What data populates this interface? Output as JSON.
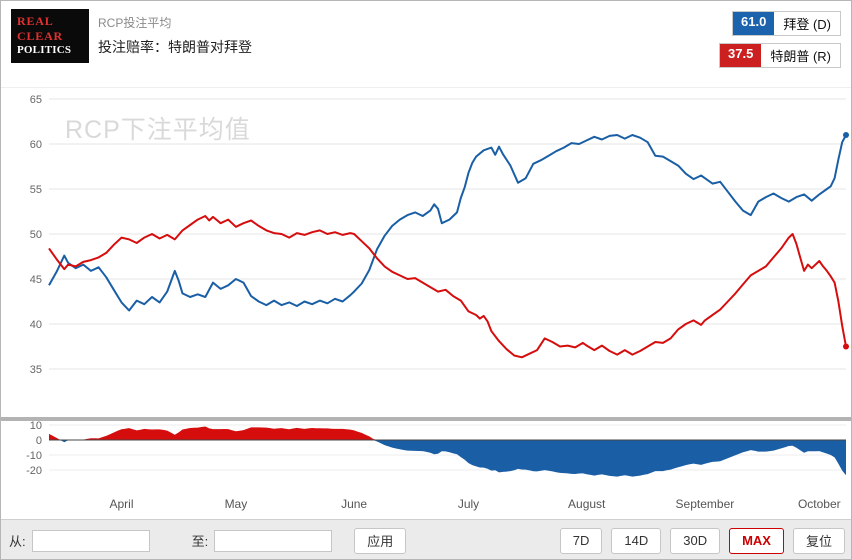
{
  "header": {
    "logo_lines": [
      "REAL",
      "CLEAR",
      "POLITICS"
    ],
    "kicker": "RCP投注平均",
    "title": "投注赔率：特朗普对拜登",
    "legend": [
      {
        "value": "61.0",
        "label": "拜登 (D)",
        "color": "#1c63ad"
      },
      {
        "value": "37.5",
        "label": "特朗普 (R)",
        "color": "#cc1f1f"
      }
    ]
  },
  "chart_data": {
    "type": "line",
    "watermark": "RCP下注平均值",
    "x_axis": {
      "month_ticks": [
        {
          "label": "April",
          "t": 19
        },
        {
          "label": "May",
          "t": 49
        },
        {
          "label": "June",
          "t": 80
        },
        {
          "label": "July",
          "t": 110
        },
        {
          "label": "August",
          "t": 141
        },
        {
          "label": "September",
          "t": 172
        },
        {
          "label": "October",
          "t": 202
        }
      ],
      "t_max": 209
    },
    "y_axis_main": {
      "min": 35,
      "max": 65,
      "ticks": [
        65,
        60,
        55,
        50,
        45,
        40,
        35
      ]
    },
    "y_axis_spread": {
      "ticks": [
        10,
        0,
        -10,
        -20
      ]
    },
    "series": [
      {
        "name": "拜登 (D)",
        "color": "#1a5fa5",
        "final_value": 61.0,
        "points": [
          [
            0,
            44.3
          ],
          [
            2,
            45.8
          ],
          [
            4,
            47.6
          ],
          [
            5,
            46.8
          ],
          [
            7,
            46.2
          ],
          [
            9,
            46.6
          ],
          [
            11,
            45.9
          ],
          [
            13,
            46.3
          ],
          [
            15,
            45.2
          ],
          [
            17,
            43.8
          ],
          [
            19,
            42.4
          ],
          [
            21,
            41.5
          ],
          [
            23,
            42.6
          ],
          [
            25,
            42.2
          ],
          [
            27,
            43.0
          ],
          [
            29,
            42.4
          ],
          [
            31,
            43.6
          ],
          [
            33,
            45.9
          ],
          [
            34,
            44.8
          ],
          [
            35,
            43.4
          ],
          [
            37,
            43.0
          ],
          [
            39,
            43.3
          ],
          [
            41,
            43.0
          ],
          [
            43,
            44.6
          ],
          [
            45,
            43.9
          ],
          [
            47,
            44.3
          ],
          [
            49,
            45.0
          ],
          [
            51,
            44.6
          ],
          [
            53,
            43.1
          ],
          [
            55,
            42.5
          ],
          [
            57,
            42.1
          ],
          [
            59,
            42.6
          ],
          [
            61,
            42.1
          ],
          [
            63,
            42.4
          ],
          [
            65,
            42.0
          ],
          [
            67,
            42.5
          ],
          [
            69,
            42.2
          ],
          [
            71,
            42.6
          ],
          [
            73,
            42.3
          ],
          [
            75,
            42.8
          ],
          [
            77,
            42.5
          ],
          [
            79,
            43.2
          ],
          [
            80,
            43.6
          ],
          [
            82,
            44.5
          ],
          [
            84,
            46.0
          ],
          [
            86,
            48.3
          ],
          [
            88,
            49.8
          ],
          [
            90,
            50.9
          ],
          [
            92,
            51.6
          ],
          [
            94,
            52.1
          ],
          [
            96,
            52.4
          ],
          [
            98,
            52.0
          ],
          [
            100,
            52.6
          ],
          [
            101,
            53.3
          ],
          [
            102,
            52.8
          ],
          [
            103,
            51.2
          ],
          [
            105,
            51.6
          ],
          [
            107,
            52.4
          ],
          [
            108,
            54.0
          ],
          [
            109,
            55.2
          ],
          [
            110,
            56.8
          ],
          [
            111,
            57.9
          ],
          [
            112,
            58.6
          ],
          [
            114,
            59.3
          ],
          [
            116,
            59.6
          ],
          [
            117,
            58.8
          ],
          [
            118,
            59.7
          ],
          [
            119,
            58.9
          ],
          [
            121,
            57.6
          ],
          [
            123,
            55.7
          ],
          [
            125,
            56.2
          ],
          [
            127,
            57.8
          ],
          [
            129,
            58.2
          ],
          [
            131,
            58.7
          ],
          [
            133,
            59.2
          ],
          [
            135,
            59.6
          ],
          [
            137,
            60.1
          ],
          [
            139,
            60.0
          ],
          [
            141,
            60.4
          ],
          [
            143,
            60.8
          ],
          [
            145,
            60.5
          ],
          [
            147,
            60.9
          ],
          [
            149,
            61.0
          ],
          [
            151,
            60.6
          ],
          [
            153,
            61.0
          ],
          [
            155,
            60.7
          ],
          [
            157,
            60.2
          ],
          [
            159,
            58.7
          ],
          [
            161,
            58.6
          ],
          [
            163,
            58.1
          ],
          [
            165,
            57.6
          ],
          [
            167,
            56.7
          ],
          [
            169,
            56.1
          ],
          [
            171,
            56.5
          ],
          [
            172,
            56.2
          ],
          [
            174,
            55.6
          ],
          [
            176,
            55.8
          ],
          [
            178,
            54.7
          ],
          [
            180,
            53.6
          ],
          [
            182,
            52.6
          ],
          [
            184,
            52.1
          ],
          [
            186,
            53.6
          ],
          [
            188,
            54.1
          ],
          [
            190,
            54.5
          ],
          [
            192,
            54.0
          ],
          [
            194,
            53.6
          ],
          [
            196,
            54.1
          ],
          [
            198,
            54.4
          ],
          [
            200,
            53.7
          ],
          [
            202,
            54.4
          ],
          [
            204,
            55.0
          ],
          [
            205,
            55.3
          ],
          [
            206,
            56.2
          ],
          [
            207,
            58.3
          ],
          [
            208,
            60.2
          ],
          [
            209,
            61.0
          ]
        ]
      },
      {
        "name": "特朗普 (R)",
        "color": "#d60d0d",
        "final_value": 37.5,
        "points": [
          [
            0,
            48.4
          ],
          [
            2,
            47.2
          ],
          [
            4,
            46.1
          ],
          [
            5,
            46.6
          ],
          [
            7,
            46.4
          ],
          [
            9,
            46.9
          ],
          [
            11,
            47.1
          ],
          [
            13,
            47.4
          ],
          [
            15,
            47.9
          ],
          [
            17,
            48.8
          ],
          [
            19,
            49.6
          ],
          [
            21,
            49.4
          ],
          [
            23,
            49.0
          ],
          [
            25,
            49.6
          ],
          [
            27,
            50.0
          ],
          [
            29,
            49.5
          ],
          [
            31,
            49.9
          ],
          [
            33,
            49.4
          ],
          [
            35,
            50.4
          ],
          [
            37,
            51.0
          ],
          [
            39,
            51.6
          ],
          [
            41,
            52.0
          ],
          [
            42,
            51.5
          ],
          [
            43,
            51.9
          ],
          [
            45,
            51.2
          ],
          [
            47,
            51.6
          ],
          [
            49,
            50.8
          ],
          [
            51,
            51.2
          ],
          [
            53,
            51.5
          ],
          [
            55,
            50.9
          ],
          [
            57,
            50.4
          ],
          [
            59,
            50.1
          ],
          [
            61,
            50.0
          ],
          [
            63,
            49.6
          ],
          [
            65,
            50.1
          ],
          [
            67,
            49.9
          ],
          [
            69,
            50.2
          ],
          [
            71,
            50.4
          ],
          [
            73,
            50.0
          ],
          [
            75,
            50.2
          ],
          [
            77,
            49.9
          ],
          [
            79,
            50.1
          ],
          [
            80,
            50.0
          ],
          [
            82,
            49.2
          ],
          [
            84,
            48.4
          ],
          [
            86,
            47.3
          ],
          [
            88,
            46.4
          ],
          [
            90,
            45.8
          ],
          [
            92,
            45.4
          ],
          [
            94,
            45.0
          ],
          [
            96,
            45.1
          ],
          [
            98,
            44.6
          ],
          [
            100,
            44.1
          ],
          [
            102,
            43.6
          ],
          [
            104,
            43.8
          ],
          [
            106,
            43.1
          ],
          [
            108,
            42.6
          ],
          [
            110,
            41.4
          ],
          [
            112,
            41.0
          ],
          [
            113,
            40.6
          ],
          [
            114,
            40.9
          ],
          [
            115,
            40.3
          ],
          [
            116,
            39.2
          ],
          [
            118,
            38.1
          ],
          [
            120,
            37.2
          ],
          [
            122,
            36.5
          ],
          [
            124,
            36.3
          ],
          [
            126,
            36.7
          ],
          [
            128,
            37.1
          ],
          [
            130,
            38.4
          ],
          [
            132,
            38.0
          ],
          [
            134,
            37.5
          ],
          [
            136,
            37.6
          ],
          [
            138,
            37.4
          ],
          [
            140,
            37.9
          ],
          [
            141,
            37.6
          ],
          [
            143,
            37.1
          ],
          [
            145,
            37.6
          ],
          [
            147,
            37.0
          ],
          [
            149,
            36.6
          ],
          [
            151,
            37.1
          ],
          [
            153,
            36.6
          ],
          [
            155,
            37.0
          ],
          [
            157,
            37.5
          ],
          [
            159,
            38.0
          ],
          [
            161,
            37.9
          ],
          [
            163,
            38.4
          ],
          [
            165,
            39.4
          ],
          [
            167,
            40.0
          ],
          [
            169,
            40.4
          ],
          [
            171,
            39.9
          ],
          [
            172,
            40.4
          ],
          [
            174,
            41.0
          ],
          [
            176,
            41.6
          ],
          [
            178,
            42.5
          ],
          [
            180,
            43.4
          ],
          [
            182,
            44.4
          ],
          [
            184,
            45.4
          ],
          [
            186,
            45.9
          ],
          [
            188,
            46.4
          ],
          [
            190,
            47.4
          ],
          [
            192,
            48.4
          ],
          [
            194,
            49.6
          ],
          [
            195,
            50.0
          ],
          [
            196,
            48.9
          ],
          [
            197,
            47.4
          ],
          [
            198,
            45.9
          ],
          [
            199,
            46.6
          ],
          [
            200,
            46.2
          ],
          [
            202,
            47.0
          ],
          [
            203,
            46.4
          ],
          [
            204,
            45.9
          ],
          [
            205,
            45.3
          ],
          [
            206,
            44.6
          ],
          [
            207,
            42.5
          ],
          [
            208,
            39.8
          ],
          [
            209,
            37.5
          ]
        ]
      }
    ],
    "spread_panel": {
      "description": "特朗普 - 拜登",
      "positive_color": "#d60d0d",
      "negative_color": "#1a5fa5"
    }
  },
  "footer": {
    "from_label": "从:",
    "from_value": "",
    "to_label": "至:",
    "to_value": "",
    "apply_label": "应用",
    "active_color": "#cc0000",
    "range_buttons": [
      {
        "label": "7D",
        "active": false
      },
      {
        "label": "14D",
        "active": false
      },
      {
        "label": "30D",
        "active": false
      },
      {
        "label": "MAX",
        "active": true
      },
      {
        "label": "复位",
        "active": false
      }
    ]
  }
}
